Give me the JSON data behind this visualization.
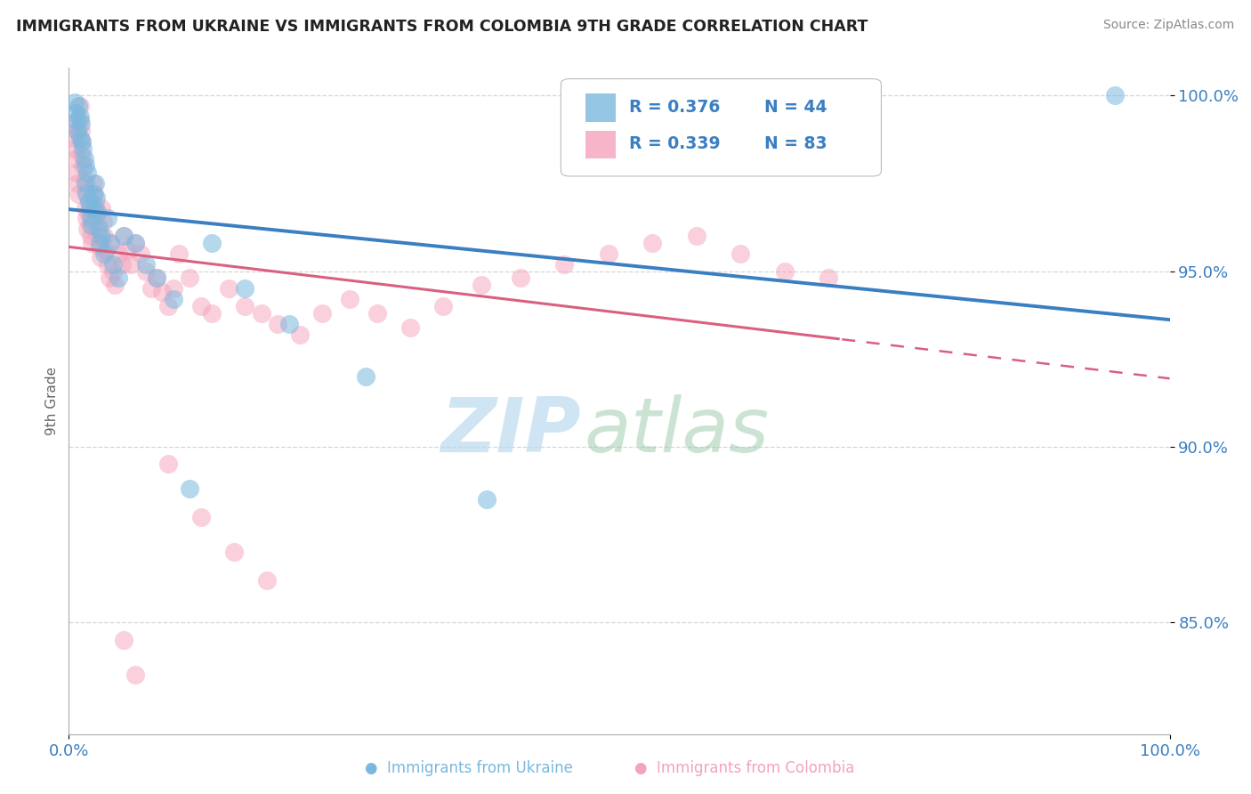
{
  "title": "IMMIGRANTS FROM UKRAINE VS IMMIGRANTS FROM COLOMBIA 9TH GRADE CORRELATION CHART",
  "source": "Source: ZipAtlas.com",
  "ylabel": "9th Grade",
  "xlim": [
    0.0,
    1.0
  ],
  "ylim": [
    0.818,
    1.008
  ],
  "ukraine_color": "#7ab8de",
  "colombia_color": "#f4a3bb",
  "ukraine_line_color": "#3a7fc1",
  "colombia_line_color": "#d96080",
  "ukraine_R": 0.376,
  "ukraine_N": 44,
  "colombia_R": 0.339,
  "colombia_N": 83,
  "legend_R_ukraine": "R = 0.376",
  "legend_N_ukraine": "N = 44",
  "legend_R_colombia": "R = 0.339",
  "legend_N_colombia": "N = 83",
  "watermark_zip": "ZIP",
  "watermark_atlas": "atlas",
  "y_ticks": [
    0.85,
    0.9,
    0.95,
    1.0
  ],
  "x_ticks": [
    0.0,
    1.0
  ],
  "ukraine_x": [
    0.005,
    0.006,
    0.007,
    0.008,
    0.009,
    0.01,
    0.01,
    0.011,
    0.012,
    0.013,
    0.014,
    0.015,
    0.015,
    0.016,
    0.017,
    0.018,
    0.019,
    0.02,
    0.021,
    0.022,
    0.023,
    0.024,
    0.025,
    0.026,
    0.027,
    0.028,
    0.03,
    0.032,
    0.035,
    0.038,
    0.04,
    0.045,
    0.05,
    0.06,
    0.07,
    0.08,
    0.095,
    0.11,
    0.13,
    0.16,
    0.2,
    0.27,
    0.38,
    0.95
  ],
  "ukraine_y": [
    0.998,
    0.995,
    0.993,
    0.99,
    0.997,
    0.994,
    0.988,
    0.992,
    0.987,
    0.985,
    0.982,
    0.98,
    0.975,
    0.972,
    0.978,
    0.97,
    0.968,
    0.965,
    0.963,
    0.972,
    0.968,
    0.975,
    0.971,
    0.967,
    0.962,
    0.958,
    0.96,
    0.955,
    0.965,
    0.958,
    0.952,
    0.948,
    0.96,
    0.958,
    0.952,
    0.948,
    0.942,
    0.888,
    0.958,
    0.945,
    0.935,
    0.92,
    0.885,
    1.0
  ],
  "colombia_x": [
    0.003,
    0.004,
    0.005,
    0.006,
    0.007,
    0.007,
    0.008,
    0.009,
    0.01,
    0.01,
    0.011,
    0.012,
    0.012,
    0.013,
    0.014,
    0.015,
    0.015,
    0.016,
    0.017,
    0.018,
    0.018,
    0.019,
    0.02,
    0.021,
    0.022,
    0.023,
    0.024,
    0.025,
    0.026,
    0.027,
    0.028,
    0.029,
    0.03,
    0.031,
    0.032,
    0.033,
    0.035,
    0.037,
    0.038,
    0.04,
    0.042,
    0.045,
    0.048,
    0.05,
    0.053,
    0.056,
    0.06,
    0.065,
    0.07,
    0.075,
    0.08,
    0.085,
    0.09,
    0.095,
    0.1,
    0.11,
    0.12,
    0.13,
    0.145,
    0.16,
    0.175,
    0.19,
    0.21,
    0.23,
    0.255,
    0.28,
    0.31,
    0.34,
    0.375,
    0.41,
    0.45,
    0.49,
    0.53,
    0.57,
    0.61,
    0.65,
    0.69,
    0.09,
    0.12,
    0.15,
    0.18,
    0.05,
    0.06
  ],
  "colombia_y": [
    0.992,
    0.988,
    0.985,
    0.982,
    0.978,
    0.99,
    0.975,
    0.972,
    0.997,
    0.993,
    0.99,
    0.987,
    0.983,
    0.98,
    0.976,
    0.973,
    0.968,
    0.965,
    0.962,
    0.97,
    0.966,
    0.963,
    0.96,
    0.958,
    0.975,
    0.972,
    0.969,
    0.966,
    0.963,
    0.96,
    0.957,
    0.954,
    0.968,
    0.964,
    0.96,
    0.956,
    0.952,
    0.948,
    0.958,
    0.95,
    0.946,
    0.955,
    0.952,
    0.96,
    0.956,
    0.952,
    0.958,
    0.955,
    0.95,
    0.945,
    0.948,
    0.944,
    0.94,
    0.945,
    0.955,
    0.948,
    0.94,
    0.938,
    0.945,
    0.94,
    0.938,
    0.935,
    0.932,
    0.938,
    0.942,
    0.938,
    0.934,
    0.94,
    0.946,
    0.948,
    0.952,
    0.955,
    0.958,
    0.96,
    0.955,
    0.95,
    0.948,
    0.895,
    0.88,
    0.87,
    0.862,
    0.845,
    0.835
  ]
}
